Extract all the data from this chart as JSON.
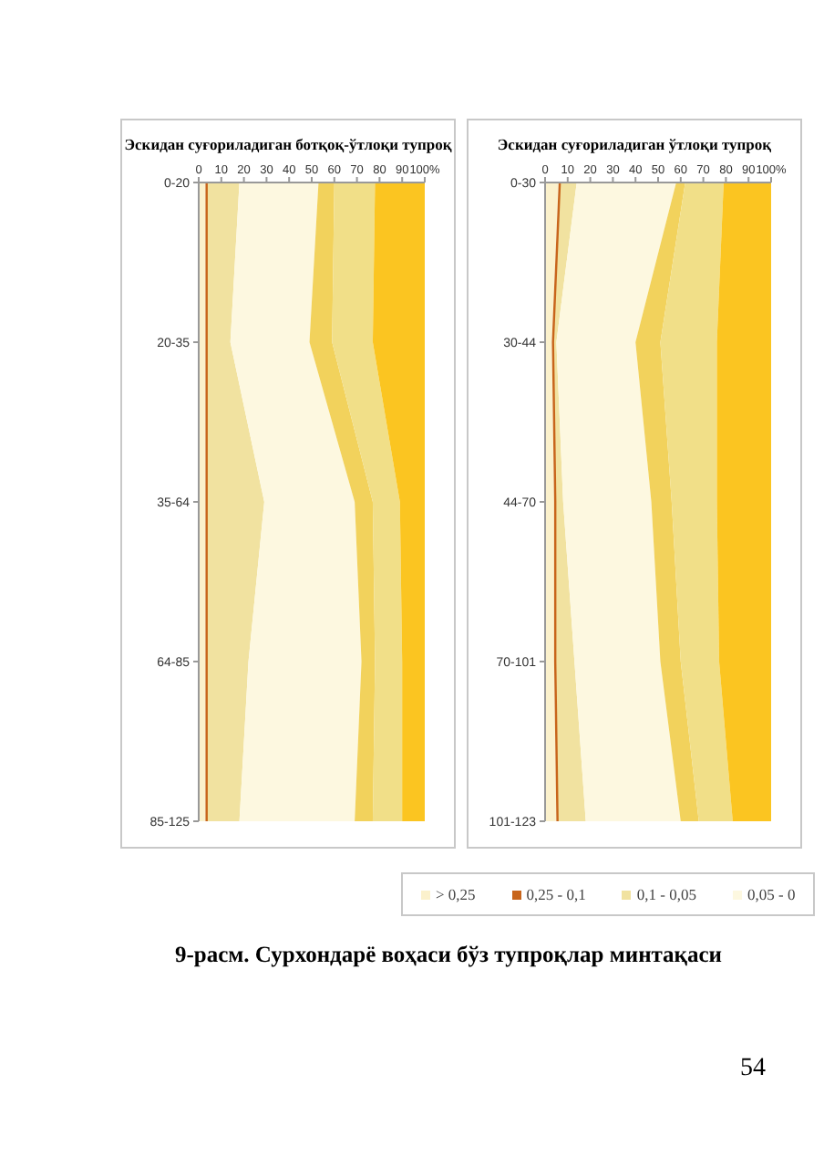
{
  "chart_data": [
    {
      "type": "area",
      "stacked": true,
      "orientation": "horizontal",
      "title": "Эскидан суғориладиган ботқоқ-ўтлоқи тупроқ",
      "categories": [
        "0-20",
        "20-35",
        "35-64",
        "64-85",
        "85-125"
      ],
      "xlim": [
        0,
        100
      ],
      "xticks": [
        0,
        10,
        20,
        30,
        40,
        50,
        60,
        70,
        80,
        90,
        {
          "value": 100,
          "label": "100%"
        }
      ],
      "legend": "bottom",
      "annotations": [
        "9-расм. Сурхондарё воҳаси бўз тупроқлар минтақаси",
        "54"
      ],
      "series": [
        {
          "name": "> 0,25",
          "color": "#fbf1cc",
          "values": [
            3,
            3,
            3,
            3,
            3
          ]
        },
        {
          "name": "0,25 - 0,1",
          "color": "#c8651b",
          "values": [
            1,
            1,
            1,
            1,
            1
          ]
        },
        {
          "name": "0,1 - 0,05",
          "color": "#f1e2a0",
          "values": [
            14,
            10,
            25,
            18,
            14
          ]
        },
        {
          "name": "0,05 - 0",
          "color": "#fdf8e0",
          "values": [
            35,
            35,
            40,
            50,
            51
          ]
        },
        {
          "color": "#f2d25c",
          "values": [
            7,
            10,
            8,
            6,
            8
          ]
        },
        {
          "color": "#f1df88",
          "values": [
            18,
            18,
            12,
            12,
            13
          ]
        },
        {
          "color": "#fbc521",
          "values": [
            22,
            23,
            11,
            10,
            10
          ]
        }
      ]
    },
    {
      "type": "area",
      "stacked": true,
      "orientation": "horizontal",
      "title": "Эскидан суғориладиган ўтлоқи тупроқ",
      "categories": [
        "0-30",
        "30-44",
        "44-70",
        "70-101",
        "101-123"
      ],
      "xlim": [
        0,
        100
      ],
      "xticks": [
        0,
        10,
        20,
        30,
        40,
        50,
        60,
        70,
        80,
        90,
        {
          "value": 100,
          "label": "100%"
        }
      ],
      "series": [
        {
          "color": "#fbf1cc",
          "values": [
            6,
            3,
            4,
            4,
            5
          ]
        },
        {
          "color": "#c8651b",
          "values": [
            1,
            1,
            1,
            1,
            1
          ]
        },
        {
          "color": "#f1e2a0",
          "values": [
            7,
            1,
            3,
            8,
            12
          ]
        },
        {
          "color": "#fdf8e0",
          "values": [
            44,
            35,
            39,
            38,
            42
          ]
        },
        {
          "color": "#f2d25c",
          "values": [
            4,
            11,
            9,
            9,
            8
          ]
        },
        {
          "color": "#f1df88",
          "values": [
            17,
            25,
            20,
            17,
            15
          ]
        },
        {
          "color": "#fbc521",
          "values": [
            21,
            24,
            24,
            23,
            17
          ]
        }
      ]
    }
  ]
}
